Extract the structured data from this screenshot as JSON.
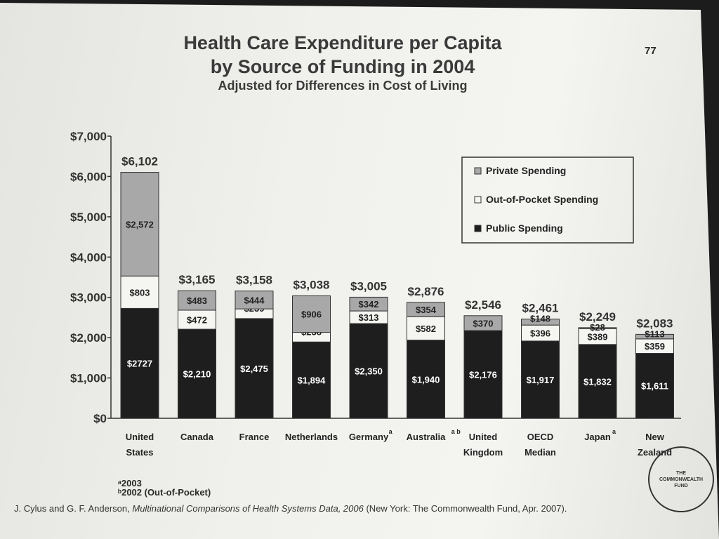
{
  "title": "Health Care Expenditure per Capita",
  "title_line2": "by Source of Funding in 2004",
  "subtitle": "Adjusted for Differences in Cost of Living",
  "page_number": "77",
  "footnote_a": "ᵃ2003",
  "footnote_b": "ᵇ2002 (Out-of-Pocket)",
  "source_authors": "J. Cylus and G. F. Anderson, ",
  "source_title": "Multinational Comparisons of Health Systems Data, 2006",
  "source_rest": " (New York: The Commonwealth Fund, Apr. 2007).",
  "seal": {
    "line1": "THE",
    "line2": "COMMONWEALTH",
    "line3": "FUND"
  },
  "colors": {
    "private": "#a8a8a8",
    "out_of_pocket": "#f5f5f2",
    "public": "#1e1e1e"
  },
  "chart_data": {
    "type": "bar",
    "stacked": true,
    "categories": [
      {
        "label": [
          "United",
          "States"
        ],
        "sup": ""
      },
      {
        "label": [
          "Canada"
        ],
        "sup": ""
      },
      {
        "label": [
          "France"
        ],
        "sup": ""
      },
      {
        "label": [
          "Netherlands"
        ],
        "sup": ""
      },
      {
        "label": [
          "Germany"
        ],
        "sup": "a"
      },
      {
        "label": [
          "Australia"
        ],
        "sup": "a b"
      },
      {
        "label": [
          "United",
          "Kingdom"
        ],
        "sup": ""
      },
      {
        "label": [
          "OECD",
          "Median"
        ],
        "sup": ""
      },
      {
        "label": [
          "Japan"
        ],
        "sup": "a"
      },
      {
        "label": [
          "New",
          "Zealand"
        ],
        "sup": ""
      }
    ],
    "series": [
      {
        "name": "Public Spending",
        "values": [
          2727,
          2210,
          2475,
          1894,
          2350,
          1940,
          2176,
          1917,
          1832,
          1611
        ],
        "labels": [
          "$2727",
          "$2,210",
          "$2,475",
          "$1,894",
          "$2,350",
          "$1,940",
          "$2,176",
          "$1,917",
          "$1,832",
          "$1,611"
        ]
      },
      {
        "name": "Out-of-Pocket Spending",
        "values": [
          803,
          472,
          239,
          238,
          313,
          582,
          0,
          396,
          389,
          359
        ],
        "labels": [
          "$803",
          "$472",
          "$239",
          "$238",
          "$313",
          "$582",
          "",
          "$396",
          "$389",
          "$359"
        ]
      },
      {
        "name": "Private Spending",
        "values": [
          2572,
          483,
          444,
          906,
          342,
          354,
          370,
          148,
          28,
          113
        ],
        "labels": [
          "$2,572",
          "$483",
          "$444",
          "$906",
          "$342",
          "$354",
          "$370",
          "$148",
          "$28",
          "$113"
        ]
      }
    ],
    "totals": [
      "$6,102",
      "$3,165",
      "$3,158",
      "$3,038",
      "$3,005",
      "$2,876",
      "$2,546",
      "$2,461",
      "$2,249",
      "$2,083"
    ],
    "legend_order": [
      "Private Spending",
      "Out-of-Pocket Spending",
      "Public Spending"
    ],
    "legend_position": "top-right",
    "yticks": [
      "$0",
      "$1,000",
      "$2,000",
      "$3,000",
      "$4,000",
      "$5,000",
      "$6,000",
      "$7,000"
    ],
    "ylim": [
      0,
      7000
    ],
    "grid": false
  }
}
